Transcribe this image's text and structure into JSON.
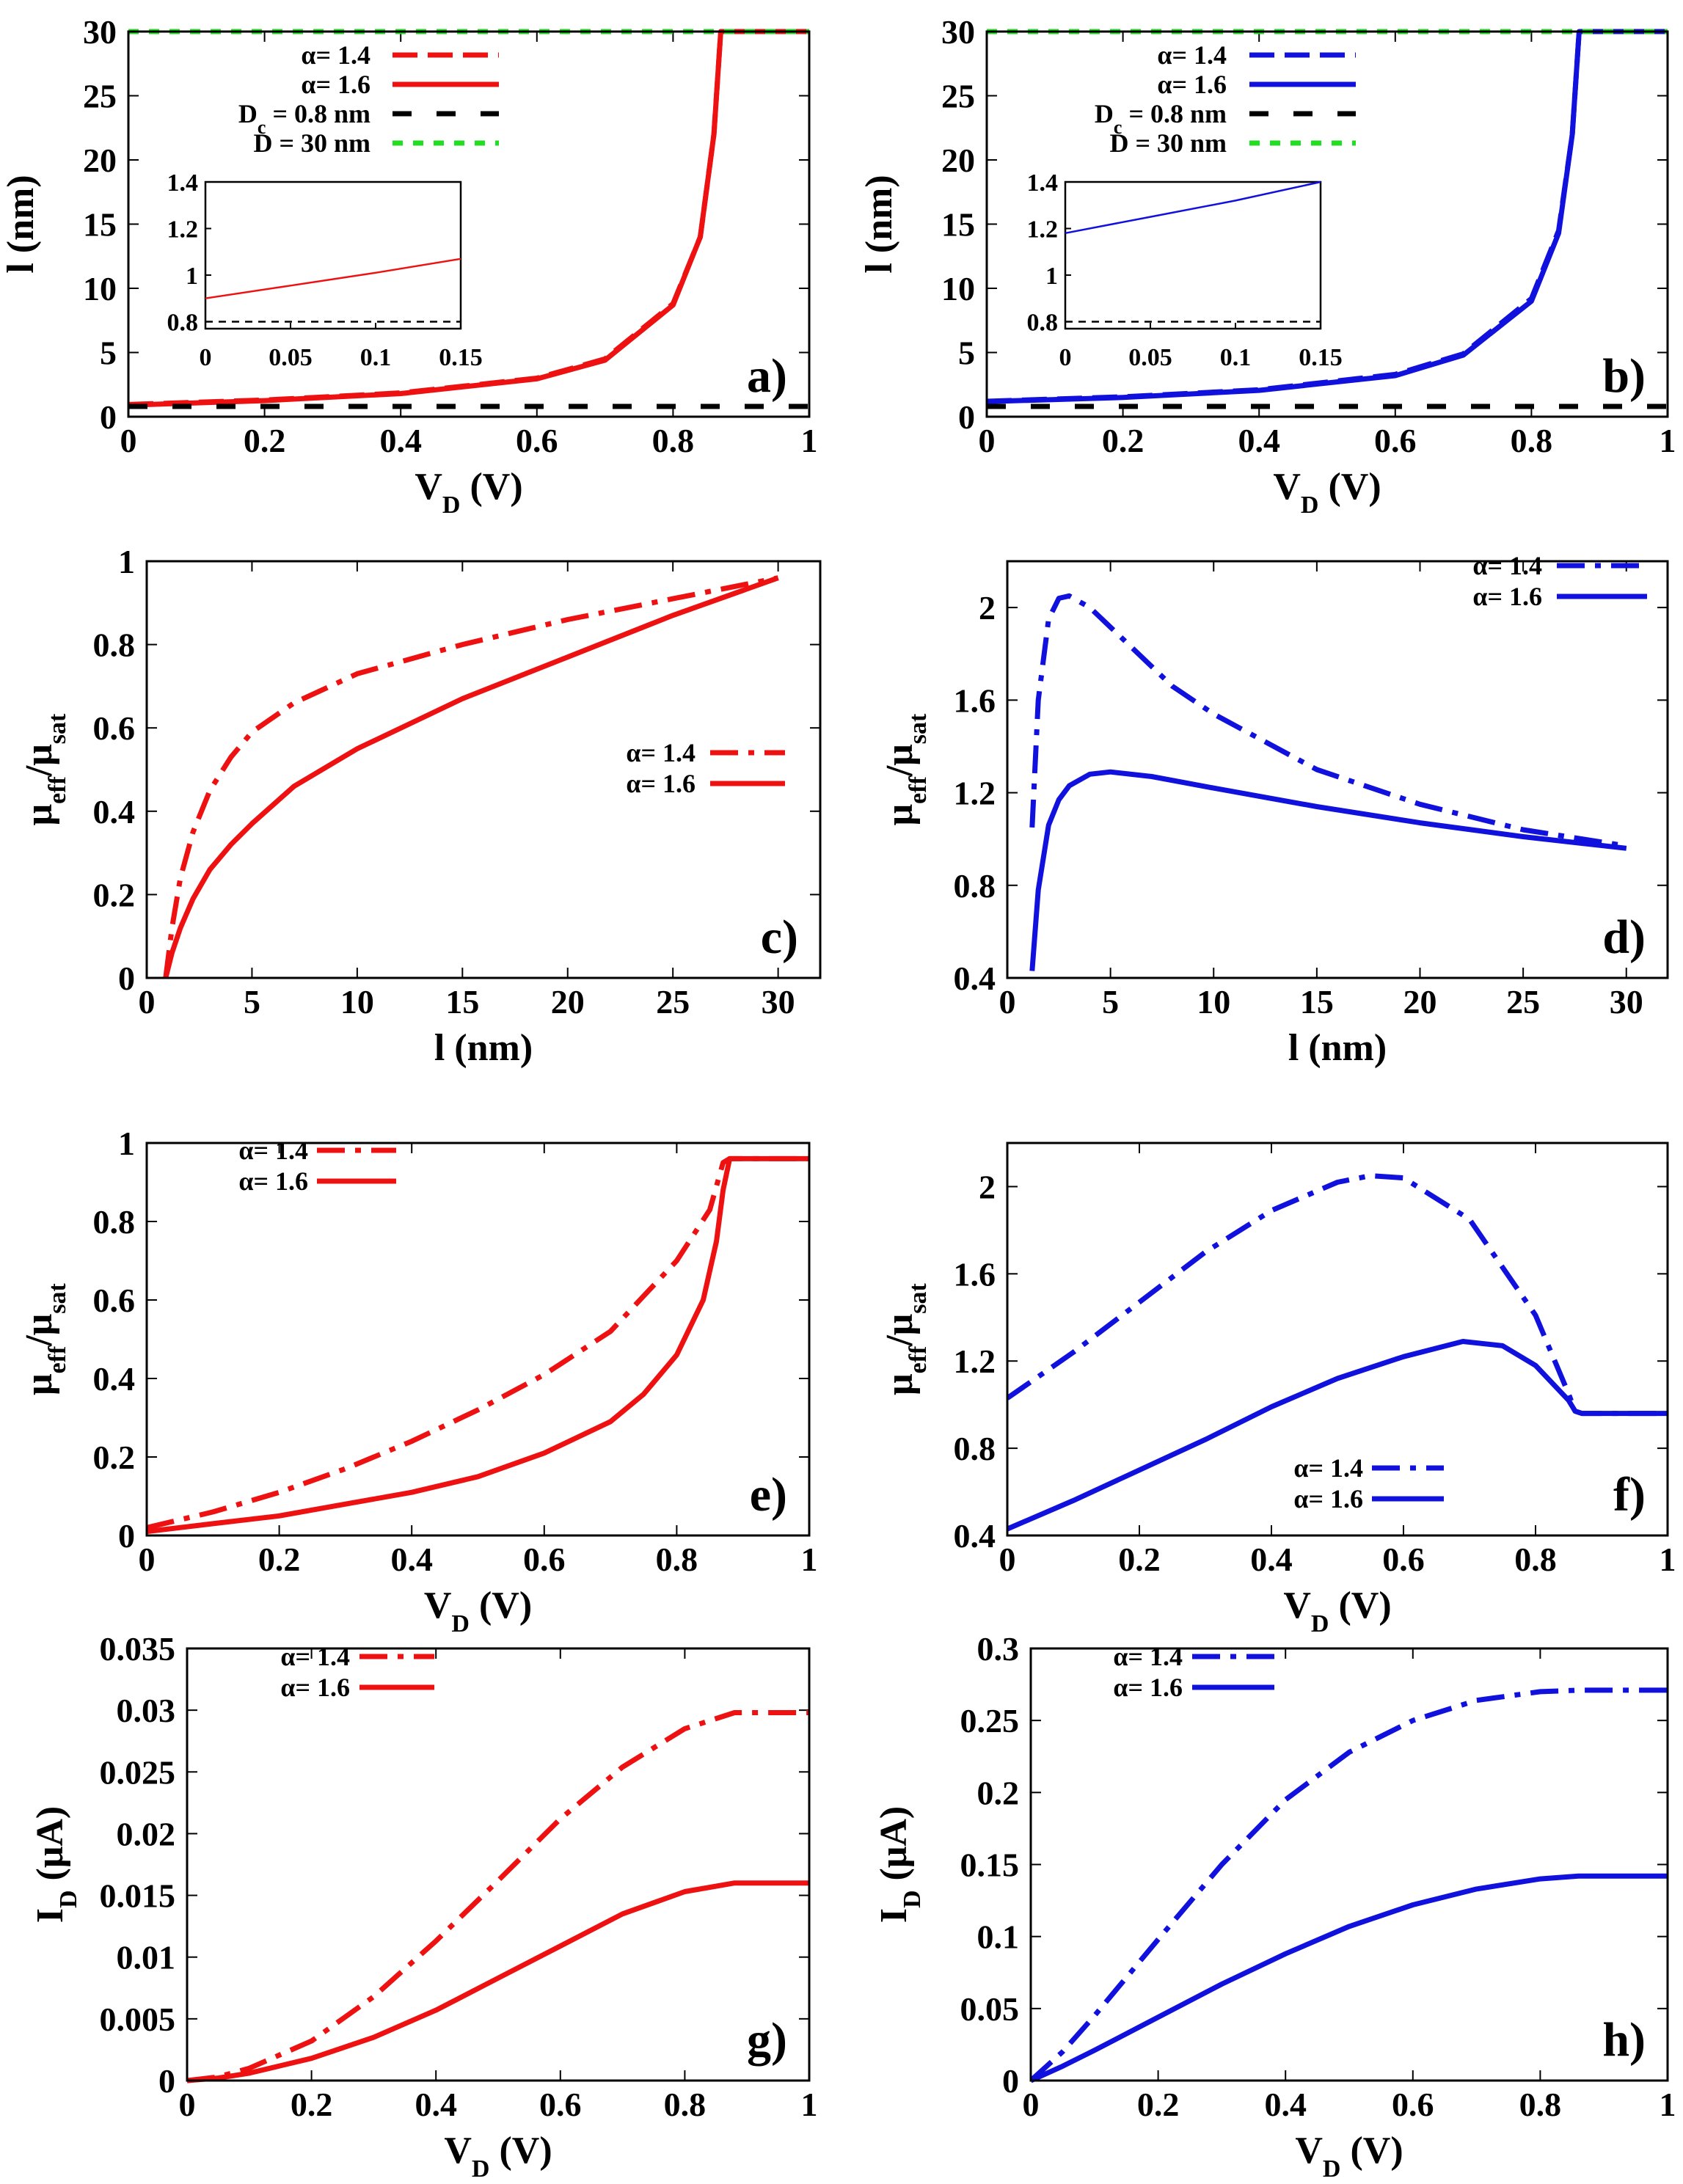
{
  "figure": {
    "colors": {
      "red": "#ee1111",
      "blue": "#1111dd",
      "black": "#000000",
      "green": "#22dd22"
    }
  },
  "chart_data": [
    {
      "panel": "a)",
      "type": "line",
      "color": "red",
      "xlabel": "V",
      "xlabel_sub": "D",
      "xlabel_suffix": " (V)",
      "ylabel": "l (nm)",
      "xlim": [
        0,
        1
      ],
      "ylim": [
        0,
        30
      ],
      "xticks": [
        0,
        0.2,
        0.4,
        0.6,
        0.8,
        1
      ],
      "xtick_labels": [
        "0",
        "0.2",
        "0.4",
        "0.6",
        "0.8",
        "1"
      ],
      "yticks": [
        0,
        5,
        10,
        15,
        20,
        25,
        30
      ],
      "ytick_labels": [
        "0",
        "5",
        "10",
        "15",
        "20",
        "25",
        "30"
      ],
      "legend_position": "top-center",
      "series": [
        {
          "name": "α= 1.4",
          "style": "dash",
          "x": [
            0,
            0.2,
            0.4,
            0.6,
            0.7,
            0.8,
            0.84,
            0.86,
            0.87,
            0.9,
            1.0
          ],
          "values": [
            0.95,
            1.3,
            1.85,
            3.0,
            4.5,
            8.8,
            14.0,
            22.0,
            30,
            30,
            30
          ]
        },
        {
          "name": "α= 1.6",
          "style": "solid",
          "x": [
            0,
            0.2,
            0.4,
            0.6,
            0.7,
            0.8,
            0.84,
            0.86,
            0.87,
            0.9,
            1.0
          ],
          "values": [
            0.9,
            1.25,
            1.8,
            2.95,
            4.4,
            8.7,
            14.0,
            22.0,
            30,
            30,
            30
          ]
        },
        {
          "name": "D",
          "name_sub": "c",
          "name_suffix": " = 0.8 nm",
          "style": "longdash",
          "color": "black",
          "x": [
            0,
            1
          ],
          "values": [
            0.8,
            0.8
          ]
        },
        {
          "name": "D = 30 nm",
          "style": "dotted",
          "color": "green",
          "x": [
            0,
            1
          ],
          "values": [
            30,
            30
          ]
        }
      ],
      "inset": {
        "xlim": [
          0,
          0.15
        ],
        "ylim": [
          0.77,
          1.4
        ],
        "xticks": [
          0,
          0.05,
          0.1,
          0.15
        ],
        "xtick_labels": [
          "0",
          "0.05",
          "0.1",
          "0.15"
        ],
        "yticks": [
          0.8,
          1,
          1.2,
          1.4
        ],
        "ytick_labels": [
          "0.8",
          "1",
          "1.2",
          "1.4"
        ],
        "series": [
          {
            "x": [
              0,
              0.05,
              0.1,
              0.15
            ],
            "values": [
              0.9,
              0.955,
              1.01,
              1.07
            ],
            "style": "solid"
          },
          {
            "x": [
              0,
              0.15
            ],
            "values": [
              0.8,
              0.8
            ],
            "style": "dash",
            "color": "black"
          }
        ]
      }
    },
    {
      "panel": "b)",
      "type": "line",
      "color": "blue",
      "xlabel": "V",
      "xlabel_sub": "D",
      "xlabel_suffix": " (V)",
      "ylabel": "l (nm)",
      "xlim": [
        0,
        1
      ],
      "ylim": [
        0,
        30
      ],
      "xticks": [
        0,
        0.2,
        0.4,
        0.6,
        0.8,
        1
      ],
      "xtick_labels": [
        "0",
        "0.2",
        "0.4",
        "0.6",
        "0.8",
        "1"
      ],
      "yticks": [
        0,
        5,
        10,
        15,
        20,
        25,
        30
      ],
      "ytick_labels": [
        "0",
        "5",
        "10",
        "15",
        "20",
        "25",
        "30"
      ],
      "legend_position": "top-center",
      "series": [
        {
          "name": "α= 1.4",
          "style": "dash",
          "x": [
            0,
            0.2,
            0.4,
            0.6,
            0.7,
            0.8,
            0.84,
            0.86,
            0.87,
            0.9,
            1.0
          ],
          "values": [
            1.2,
            1.55,
            2.1,
            3.3,
            4.9,
            9.2,
            14.5,
            22.0,
            30,
            30,
            30
          ]
        },
        {
          "name": "α= 1.6",
          "style": "solid",
          "x": [
            0,
            0.2,
            0.4,
            0.6,
            0.7,
            0.8,
            0.84,
            0.86,
            0.87,
            0.9,
            1.0
          ],
          "values": [
            1.18,
            1.5,
            2.05,
            3.2,
            4.8,
            9.0,
            14.3,
            22.0,
            30,
            30,
            30
          ]
        },
        {
          "name": "D",
          "name_sub": "c",
          "name_suffix": " = 0.8 nm",
          "style": "longdash",
          "color": "black",
          "x": [
            0,
            1
          ],
          "values": [
            0.8,
            0.8
          ]
        },
        {
          "name": "D = 30 nm",
          "style": "dotted",
          "color": "green",
          "x": [
            0,
            1
          ],
          "values": [
            30,
            30
          ]
        }
      ],
      "inset": {
        "xlim": [
          0,
          0.15
        ],
        "ylim": [
          0.77,
          1.4
        ],
        "xticks": [
          0,
          0.05,
          0.1,
          0.15
        ],
        "xtick_labels": [
          "0",
          "0.05",
          "0.1",
          "0.15"
        ],
        "yticks": [
          0.8,
          1,
          1.2,
          1.4
        ],
        "ytick_labels": [
          "0.8",
          "1",
          "1.2",
          "1.4"
        ],
        "series": [
          {
            "x": [
              0,
              0.05,
              0.1,
              0.15
            ],
            "values": [
              1.18,
              1.25,
              1.32,
              1.4
            ],
            "style": "solid"
          },
          {
            "x": [
              0,
              0.15
            ],
            "values": [
              0.8,
              0.8
            ],
            "style": "dash",
            "color": "black"
          }
        ]
      }
    },
    {
      "panel": "c)",
      "type": "line",
      "color": "red",
      "xlabel": "l (nm)",
      "ylabel": "μ",
      "ylabel_sub1": "eff",
      "ylabel_mid": "/μ",
      "ylabel_sub2": "sat",
      "xlim": [
        0,
        32
      ],
      "ylim": [
        0,
        1
      ],
      "xticks": [
        0,
        5,
        10,
        15,
        20,
        25,
        30
      ],
      "xtick_labels": [
        "0",
        "5",
        "10",
        "15",
        "20",
        "25",
        "30"
      ],
      "yticks": [
        0,
        0.2,
        0.4,
        0.6,
        0.8,
        1
      ],
      "ytick_labels": [
        "0",
        "0.2",
        "0.4",
        "0.6",
        "0.8",
        "1"
      ],
      "legend_position": "middle-right",
      "series": [
        {
          "name": "α= 1.4",
          "style": "dashdot",
          "x": [
            0.9,
            1.2,
            1.6,
            2.2,
            3,
            4,
            5,
            7,
            10,
            15,
            20,
            25,
            30
          ],
          "values": [
            0,
            0.12,
            0.24,
            0.35,
            0.45,
            0.53,
            0.59,
            0.66,
            0.73,
            0.8,
            0.86,
            0.91,
            0.96
          ]
        },
        {
          "name": "α= 1.6",
          "style": "solid",
          "x": [
            0.9,
            1.2,
            1.6,
            2.2,
            3,
            4,
            5,
            7,
            10,
            15,
            20,
            25,
            30
          ],
          "values": [
            0,
            0.06,
            0.12,
            0.19,
            0.26,
            0.32,
            0.37,
            0.46,
            0.55,
            0.67,
            0.77,
            0.87,
            0.96
          ]
        }
      ]
    },
    {
      "panel": "d)",
      "type": "line",
      "color": "blue",
      "xlabel": "l (nm)",
      "ylabel": "μ",
      "ylabel_sub1": "eff",
      "ylabel_mid": "/μ",
      "ylabel_sub2": "sat",
      "xlim": [
        0,
        32
      ],
      "ylim": [
        0.4,
        2.2
      ],
      "xticks": [
        0,
        5,
        10,
        15,
        20,
        25,
        30
      ],
      "xtick_labels": [
        "0",
        "5",
        "10",
        "15",
        "20",
        "25",
        "30"
      ],
      "yticks": [
        0.4,
        0.8,
        1.2,
        1.6,
        2
      ],
      "ytick_labels": [
        "0.4",
        "0.8",
        "1.2",
        "1.6",
        "2"
      ],
      "legend_position": "top-right",
      "series": [
        {
          "name": "α= 1.4",
          "style": "dashdot",
          "x": [
            1.2,
            1.5,
            2,
            2.5,
            3,
            4,
            6,
            8,
            10,
            15,
            20,
            25,
            30
          ],
          "values": [
            1.05,
            1.6,
            1.95,
            2.04,
            2.05,
            2.0,
            1.83,
            1.66,
            1.54,
            1.3,
            1.15,
            1.04,
            0.97
          ]
        },
        {
          "name": "α= 1.6",
          "style": "solid",
          "x": [
            1.2,
            1.5,
            2,
            2.5,
            3,
            4,
            5,
            7,
            10,
            15,
            20,
            25,
            30
          ],
          "values": [
            0.43,
            0.78,
            1.06,
            1.17,
            1.23,
            1.28,
            1.29,
            1.27,
            1.22,
            1.14,
            1.07,
            1.01,
            0.96
          ]
        }
      ]
    },
    {
      "panel": "e)",
      "type": "line",
      "color": "red",
      "xlabel": "V",
      "xlabel_sub": "D",
      "xlabel_suffix": " (V)",
      "ylabel": "μ",
      "ylabel_sub1": "eff",
      "ylabel_mid": "/μ",
      "ylabel_sub2": "sat",
      "xlim": [
        0,
        1
      ],
      "ylim": [
        0,
        1
      ],
      "xticks": [
        0,
        0.2,
        0.4,
        0.6,
        0.8,
        1
      ],
      "xtick_labels": [
        "0",
        "0.2",
        "0.4",
        "0.6",
        "0.8",
        "1"
      ],
      "yticks": [
        0,
        0.2,
        0.4,
        0.6,
        0.8,
        1
      ],
      "ytick_labels": [
        "0",
        "0.2",
        "0.4",
        "0.6",
        "0.8",
        "1"
      ],
      "legend_position": "top-left",
      "series": [
        {
          "name": "α= 1.4",
          "style": "dashdot",
          "x": [
            0,
            0.1,
            0.2,
            0.3,
            0.4,
            0.5,
            0.6,
            0.7,
            0.8,
            0.85,
            0.87,
            0.88,
            1.0
          ],
          "values": [
            0.02,
            0.06,
            0.11,
            0.17,
            0.24,
            0.32,
            0.41,
            0.52,
            0.7,
            0.83,
            0.95,
            0.96,
            0.96
          ]
        },
        {
          "name": "α= 1.6",
          "style": "solid",
          "x": [
            0,
            0.1,
            0.2,
            0.3,
            0.4,
            0.5,
            0.6,
            0.7,
            0.75,
            0.8,
            0.84,
            0.86,
            0.87,
            0.88,
            1.0
          ],
          "values": [
            0.01,
            0.03,
            0.05,
            0.08,
            0.11,
            0.15,
            0.21,
            0.29,
            0.36,
            0.46,
            0.6,
            0.75,
            0.88,
            0.96,
            0.96
          ]
        }
      ]
    },
    {
      "panel": "f)",
      "type": "line",
      "color": "blue",
      "xlabel": "V",
      "xlabel_sub": "D",
      "xlabel_suffix": " (V)",
      "ylabel": "μ",
      "ylabel_sub1": "eff",
      "ylabel_mid": "/μ",
      "ylabel_sub2": "sat",
      "xlim": [
        0,
        1
      ],
      "ylim": [
        0.4,
        2.2
      ],
      "xticks": [
        0,
        0.2,
        0.4,
        0.6,
        0.8,
        1
      ],
      "xtick_labels": [
        "0",
        "0.2",
        "0.4",
        "0.6",
        "0.8",
        "1"
      ],
      "yticks": [
        0.4,
        0.8,
        1.2,
        1.6,
        2
      ],
      "ytick_labels": [
        "0.4",
        "0.8",
        "1.2",
        "1.6",
        "2"
      ],
      "legend_position": "bottom-center",
      "series": [
        {
          "name": "α= 1.4",
          "style": "dashdot",
          "x": [
            0,
            0.1,
            0.2,
            0.3,
            0.4,
            0.5,
            0.55,
            0.6,
            0.7,
            0.8,
            0.85,
            0.86,
            0.87,
            1.0
          ],
          "values": [
            1.03,
            1.24,
            1.47,
            1.7,
            1.89,
            2.02,
            2.05,
            2.04,
            1.85,
            1.41,
            1.05,
            0.97,
            0.96,
            0.96
          ]
        },
        {
          "name": "α= 1.6",
          "style": "solid",
          "x": [
            0,
            0.1,
            0.2,
            0.3,
            0.4,
            0.5,
            0.6,
            0.69,
            0.75,
            0.8,
            0.85,
            0.86,
            0.87,
            1.0
          ],
          "values": [
            0.43,
            0.56,
            0.7,
            0.84,
            0.99,
            1.12,
            1.22,
            1.29,
            1.27,
            1.18,
            1.02,
            0.97,
            0.96,
            0.96
          ]
        }
      ]
    },
    {
      "panel": "g)",
      "type": "line",
      "color": "red",
      "xlabel": "V",
      "xlabel_sub": "D",
      "xlabel_suffix": " (V)",
      "ylabel": "I",
      "ylabel_sub1": "D",
      "ylabel_mid": " (μA)",
      "xlim": [
        0,
        1
      ],
      "ylim": [
        0,
        0.035
      ],
      "xticks": [
        0,
        0.2,
        0.4,
        0.6,
        0.8,
        1
      ],
      "xtick_labels": [
        "0",
        "0.2",
        "0.4",
        "0.6",
        "0.8",
        "1"
      ],
      "yticks": [
        0,
        0.005,
        0.01,
        0.015,
        0.02,
        0.025,
        0.03,
        0.035
      ],
      "ytick_labels": [
        "0",
        "0.005",
        "0.01",
        "0.015",
        "0.02",
        "0.025",
        "0.03",
        "0.035"
      ],
      "legend_position": "top-left",
      "series": [
        {
          "name": "α= 1.4",
          "style": "dashdot",
          "x": [
            0,
            0.05,
            0.1,
            0.2,
            0.3,
            0.4,
            0.5,
            0.6,
            0.7,
            0.8,
            0.88,
            1.0
          ],
          "values": [
            0,
            0.0003,
            0.001,
            0.0032,
            0.0068,
            0.0113,
            0.0162,
            0.0212,
            0.0254,
            0.0285,
            0.0298,
            0.0298
          ]
        },
        {
          "name": "α= 1.6",
          "style": "solid",
          "x": [
            0,
            0.05,
            0.1,
            0.2,
            0.3,
            0.4,
            0.5,
            0.6,
            0.7,
            0.8,
            0.88,
            1.0
          ],
          "values": [
            0,
            0.0002,
            0.0006,
            0.0018,
            0.0035,
            0.0057,
            0.0083,
            0.0109,
            0.0135,
            0.0153,
            0.016,
            0.016
          ]
        }
      ]
    },
    {
      "panel": "h)",
      "type": "line",
      "color": "blue",
      "xlabel": "V",
      "xlabel_sub": "D",
      "xlabel_suffix": " (V)",
      "ylabel": "I",
      "ylabel_sub1": "D",
      "ylabel_mid": " (μA)",
      "xlim": [
        0,
        1
      ],
      "ylim": [
        0,
        0.3
      ],
      "xticks": [
        0,
        0.2,
        0.4,
        0.6,
        0.8,
        1
      ],
      "xtick_labels": [
        "0",
        "0.2",
        "0.4",
        "0.6",
        "0.8",
        "1"
      ],
      "yticks": [
        0,
        0.05,
        0.1,
        0.15,
        0.2,
        0.25,
        0.3
      ],
      "ytick_labels": [
        "0",
        "0.05",
        "0.1",
        "0.15",
        "0.2",
        "0.25",
        "0.3"
      ],
      "legend_position": "top-left",
      "series": [
        {
          "name": "α= 1.4",
          "style": "dashdot",
          "x": [
            0,
            0.05,
            0.1,
            0.2,
            0.3,
            0.4,
            0.5,
            0.6,
            0.7,
            0.8,
            0.86,
            1.0
          ],
          "values": [
            0,
            0.02,
            0.045,
            0.098,
            0.15,
            0.195,
            0.228,
            0.25,
            0.264,
            0.27,
            0.271,
            0.271
          ]
        },
        {
          "name": "α= 1.6",
          "style": "solid",
          "x": [
            0,
            0.05,
            0.1,
            0.2,
            0.3,
            0.4,
            0.5,
            0.6,
            0.7,
            0.8,
            0.86,
            1.0
          ],
          "values": [
            0,
            0.01,
            0.021,
            0.044,
            0.067,
            0.088,
            0.107,
            0.122,
            0.133,
            0.14,
            0.142,
            0.142
          ]
        }
      ]
    }
  ]
}
